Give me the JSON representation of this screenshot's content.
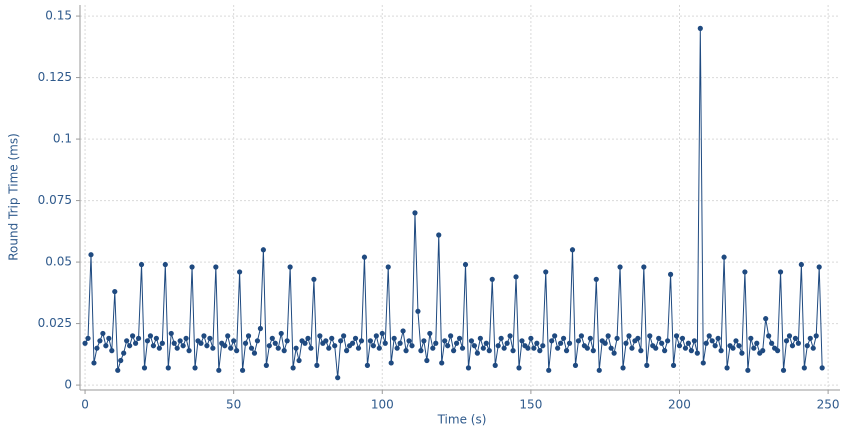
{
  "chart_data": {
    "type": "line",
    "xlabel": "Time (s)",
    "ylabel": "Round Trip Time (ms)",
    "color": "#1f4a80",
    "grid": true,
    "xlim": [
      -1.7,
      254
    ],
    "ylim": [
      -0.002,
      0.1545
    ],
    "xticks": [
      0,
      50,
      100,
      150,
      200,
      250
    ],
    "yticks": [
      0,
      0.025,
      0.05,
      0.075,
      0.1,
      0.125,
      0.15
    ],
    "x": [
      0,
      1,
      2,
      3,
      4,
      5,
      6,
      7,
      8,
      9,
      10,
      11,
      12,
      13,
      14,
      15,
      16,
      17,
      18,
      19,
      20,
      21,
      22,
      23,
      24,
      25,
      26,
      27,
      28,
      29,
      30,
      31,
      32,
      33,
      34,
      35,
      36,
      37,
      38,
      39,
      40,
      41,
      42,
      43,
      44,
      45,
      46,
      47,
      48,
      49,
      50,
      51,
      52,
      53,
      54,
      55,
      56,
      57,
      58,
      59,
      60,
      61,
      62,
      63,
      64,
      65,
      66,
      67,
      68,
      69,
      70,
      71,
      72,
      73,
      74,
      75,
      76,
      77,
      78,
      79,
      80,
      81,
      82,
      83,
      84,
      85,
      86,
      87,
      88,
      89,
      90,
      91,
      92,
      93,
      94,
      95,
      96,
      97,
      98,
      99,
      100,
      101,
      102,
      103,
      104,
      105,
      106,
      107,
      108,
      109,
      110,
      111,
      112,
      113,
      114,
      115,
      116,
      117,
      118,
      119,
      120,
      121,
      122,
      123,
      124,
      125,
      126,
      127,
      128,
      129,
      130,
      131,
      132,
      133,
      134,
      135,
      136,
      137,
      138,
      139,
      140,
      141,
      142,
      143,
      144,
      145,
      146,
      147,
      148,
      149,
      150,
      151,
      152,
      153,
      154,
      155,
      156,
      157,
      158,
      159,
      160,
      161,
      162,
      163,
      164,
      165,
      166,
      167,
      168,
      169,
      170,
      171,
      172,
      173,
      174,
      175,
      176,
      177,
      178,
      179,
      180,
      181,
      182,
      183,
      184,
      185,
      186,
      187,
      188,
      189,
      190,
      191,
      192,
      193,
      194,
      195,
      196,
      197,
      198,
      199,
      200,
      201,
      202,
      203,
      204,
      205,
      206,
      207,
      208,
      209,
      210,
      211,
      212,
      213,
      214,
      215,
      216,
      217,
      218,
      219,
      220,
      221,
      222,
      223,
      224,
      225,
      226,
      227,
      228,
      229,
      230,
      231,
      232,
      233,
      234,
      235,
      236,
      237,
      238,
      239,
      240,
      241,
      242,
      243,
      244,
      245,
      246,
      247,
      248
    ],
    "values": [
      0.017,
      0.019,
      0.053,
      0.009,
      0.015,
      0.018,
      0.021,
      0.016,
      0.019,
      0.014,
      0.038,
      0.006,
      0.01,
      0.013,
      0.018,
      0.016,
      0.02,
      0.017,
      0.019,
      0.049,
      0.007,
      0.018,
      0.02,
      0.016,
      0.019,
      0.015,
      0.017,
      0.049,
      0.007,
      0.021,
      0.017,
      0.015,
      0.018,
      0.016,
      0.019,
      0.014,
      0.048,
      0.007,
      0.018,
      0.017,
      0.02,
      0.016,
      0.019,
      0.015,
      0.048,
      0.006,
      0.017,
      0.016,
      0.02,
      0.015,
      0.018,
      0.014,
      0.046,
      0.006,
      0.017,
      0.02,
      0.015,
      0.013,
      0.018,
      0.023,
      0.055,
      0.008,
      0.016,
      0.019,
      0.017,
      0.015,
      0.021,
      0.014,
      0.018,
      0.048,
      0.007,
      0.015,
      0.01,
      0.018,
      0.017,
      0.019,
      0.015,
      0.043,
      0.008,
      0.02,
      0.017,
      0.018,
      0.015,
      0.019,
      0.016,
      0.003,
      0.018,
      0.02,
      0.014,
      0.016,
      0.017,
      0.019,
      0.015,
      0.018,
      0.052,
      0.008,
      0.018,
      0.016,
      0.02,
      0.015,
      0.021,
      0.017,
      0.048,
      0.009,
      0.019,
      0.015,
      0.017,
      0.022,
      0.014,
      0.018,
      0.016,
      0.07,
      0.03,
      0.014,
      0.018,
      0.01,
      0.021,
      0.015,
      0.017,
      0.061,
      0.009,
      0.018,
      0.016,
      0.02,
      0.014,
      0.017,
      0.019,
      0.015,
      0.049,
      0.007,
      0.018,
      0.016,
      0.013,
      0.019,
      0.015,
      0.017,
      0.014,
      0.043,
      0.008,
      0.016,
      0.019,
      0.015,
      0.017,
      0.02,
      0.014,
      0.044,
      0.007,
      0.018,
      0.016,
      0.015,
      0.019,
      0.015,
      0.017,
      0.014,
      0.016,
      0.046,
      0.006,
      0.018,
      0.02,
      0.015,
      0.017,
      0.019,
      0.014,
      0.017,
      0.055,
      0.008,
      0.018,
      0.02,
      0.016,
      0.015,
      0.019,
      0.014,
      0.043,
      0.006,
      0.018,
      0.017,
      0.02,
      0.015,
      0.013,
      0.019,
      0.048,
      0.007,
      0.017,
      0.02,
      0.015,
      0.018,
      0.019,
      0.014,
      0.048,
      0.008,
      0.02,
      0.016,
      0.015,
      0.019,
      0.017,
      0.014,
      0.018,
      0.045,
      0.008,
      0.02,
      0.016,
      0.019,
      0.015,
      0.017,
      0.014,
      0.018,
      0.013,
      0.145,
      0.009,
      0.017,
      0.02,
      0.018,
      0.016,
      0.019,
      0.014,
      0.052,
      0.007,
      0.016,
      0.015,
      0.018,
      0.016,
      0.013,
      0.046,
      0.006,
      0.019,
      0.015,
      0.017,
      0.013,
      0.014,
      0.027,
      0.02,
      0.017,
      0.015,
      0.014,
      0.046,
      0.006,
      0.018,
      0.02,
      0.016,
      0.019,
      0.017,
      0.049,
      0.007,
      0.016,
      0.019,
      0.015,
      0.02,
      0.048,
      0.007
    ]
  }
}
